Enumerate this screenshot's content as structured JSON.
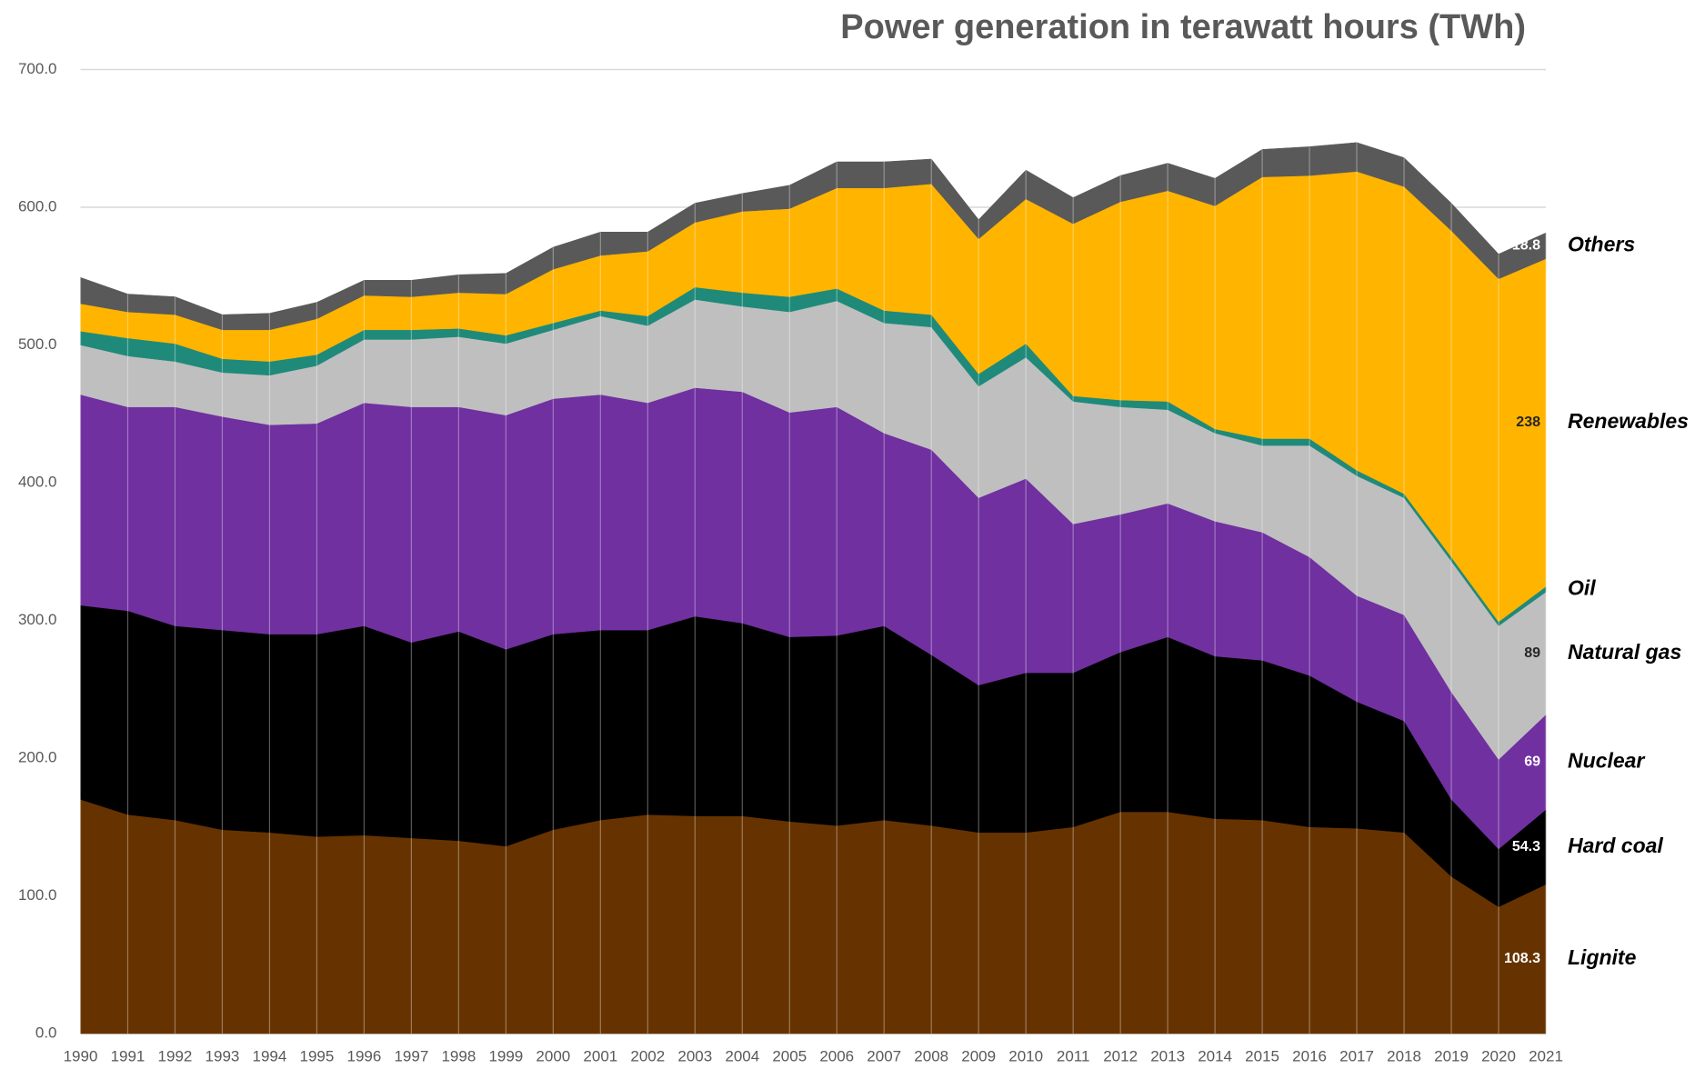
{
  "chart_data": {
    "type": "stacked_area",
    "title": "Power generation in terawatt hours (TWh)",
    "x": [
      1990,
      1991,
      1992,
      1993,
      1994,
      1995,
      1996,
      1997,
      1998,
      1999,
      2000,
      2001,
      2002,
      2003,
      2004,
      2005,
      2006,
      2007,
      2008,
      2009,
      2010,
      2011,
      2012,
      2013,
      2014,
      2015,
      2016,
      2017,
      2018,
      2019,
      2020,
      2021
    ],
    "xlim": [
      1990,
      2021
    ],
    "ylim": [
      0,
      700
    ],
    "yticks": [
      {
        "value": 0,
        "label": "0.0"
      },
      {
        "value": 100,
        "label": "100.0"
      },
      {
        "value": 200,
        "label": "200.0"
      },
      {
        "value": 300,
        "label": "300.0"
      },
      {
        "value": 400,
        "label": "400.0"
      },
      {
        "value": 500,
        "label": "500.0"
      },
      {
        "value": 600,
        "label": "600.0"
      },
      {
        "value": 700,
        "label": "700.0"
      }
    ],
    "grid": true,
    "series": [
      {
        "name": "Lignite",
        "color": "#663300",
        "values": [
          170,
          159,
          155,
          148,
          146,
          143,
          144,
          142,
          140,
          136,
          148,
          155,
          159,
          158,
          158,
          154,
          151,
          155,
          151,
          146,
          146,
          150,
          161,
          161,
          156,
          155,
          150,
          149,
          146,
          114,
          92,
          108.3
        ],
        "value_labels": [
          null,
          null,
          null,
          null,
          null,
          null,
          null,
          null,
          null,
          null,
          null,
          null,
          null,
          null,
          null,
          null,
          null,
          null,
          null,
          null,
          null,
          null,
          null,
          null,
          null,
          null,
          null,
          null,
          null,
          null,
          null,
          "108.3"
        ]
      },
      {
        "name": "Hard coal",
        "color": "#000000",
        "values": [
          141,
          148,
          141,
          145,
          144,
          147,
          152,
          142,
          152,
          143,
          142,
          138,
          134,
          145,
          140,
          134,
          138,
          141,
          124,
          107,
          116,
          112,
          116,
          127,
          118,
          116,
          110,
          92,
          81,
          56,
          42,
          54.3
        ],
        "value_labels": [
          null,
          null,
          null,
          null,
          null,
          null,
          null,
          null,
          null,
          null,
          null,
          null,
          null,
          null,
          null,
          null,
          null,
          null,
          null,
          null,
          null,
          null,
          null,
          null,
          null,
          null,
          null,
          null,
          null,
          null,
          null,
          "54.3"
        ]
      },
      {
        "name": "Nuclear",
        "color": "#7030a0",
        "values": [
          153,
          148,
          159,
          155,
          152,
          153,
          162,
          171,
          163,
          170,
          171,
          171,
          165,
          166,
          168,
          163,
          166,
          140,
          149,
          136,
          141,
          108,
          100,
          97,
          98,
          93,
          86,
          77,
          77,
          78,
          65,
          69
        ],
        "value_labels": [
          null,
          null,
          null,
          null,
          null,
          null,
          null,
          null,
          null,
          null,
          null,
          null,
          null,
          null,
          null,
          null,
          null,
          null,
          null,
          null,
          null,
          null,
          null,
          null,
          null,
          null,
          null,
          null,
          null,
          null,
          null,
          "69"
        ]
      },
      {
        "name": "Natural gas",
        "color": "#bfbfbf",
        "values": [
          36,
          37,
          33,
          32,
          36,
          42,
          46,
          49,
          51,
          52,
          50,
          57,
          56,
          64,
          62,
          73,
          77,
          80,
          89,
          81,
          88,
          89,
          78,
          68,
          64,
          63,
          81,
          87,
          85,
          95,
          97,
          89
        ],
        "value_labels": [
          null,
          null,
          null,
          null,
          null,
          null,
          null,
          null,
          null,
          null,
          null,
          null,
          null,
          null,
          null,
          null,
          null,
          null,
          null,
          null,
          null,
          null,
          null,
          null,
          null,
          null,
          null,
          null,
          null,
          null,
          null,
          "89"
        ]
      },
      {
        "name": "Oil",
        "color": "#1f8a7a",
        "values": [
          10,
          13,
          13,
          10,
          10,
          8,
          7,
          7,
          6,
          6,
          5,
          4,
          7,
          9,
          10,
          11,
          9,
          9,
          9,
          9,
          10,
          4,
          5,
          6,
          3,
          5,
          5,
          4,
          3,
          3,
          3,
          4
        ]
      },
      {
        "name": "Renewables",
        "color": "#ffb400",
        "values": [
          20,
          19,
          21,
          21,
          23,
          26,
          25,
          24,
          26,
          30,
          39,
          40,
          47,
          47,
          59,
          64,
          73,
          89,
          95,
          98,
          105,
          125,
          144,
          153,
          162,
          190,
          191,
          217,
          223,
          237,
          249,
          238
        ],
        "value_labels": [
          null,
          null,
          null,
          null,
          null,
          null,
          null,
          null,
          null,
          null,
          null,
          null,
          null,
          null,
          null,
          null,
          null,
          null,
          null,
          null,
          null,
          null,
          null,
          null,
          null,
          null,
          null,
          null,
          null,
          null,
          null,
          "238"
        ]
      },
      {
        "name": "Others",
        "color": "#595959",
        "values": [
          19,
          13,
          13,
          11,
          12,
          12,
          11,
          12,
          13,
          15,
          16,
          17,
          14,
          14,
          13,
          17,
          19,
          19,
          18,
          14,
          21,
          19,
          19,
          20,
          20,
          20,
          21,
          21,
          21,
          20,
          18,
          18.8
        ],
        "value_labels": [
          null,
          null,
          null,
          null,
          null,
          null,
          null,
          null,
          null,
          null,
          null,
          null,
          null,
          null,
          null,
          null,
          null,
          null,
          null,
          null,
          null,
          null,
          null,
          null,
          null,
          null,
          null,
          null,
          null,
          null,
          null,
          "18.8"
        ]
      }
    ]
  }
}
